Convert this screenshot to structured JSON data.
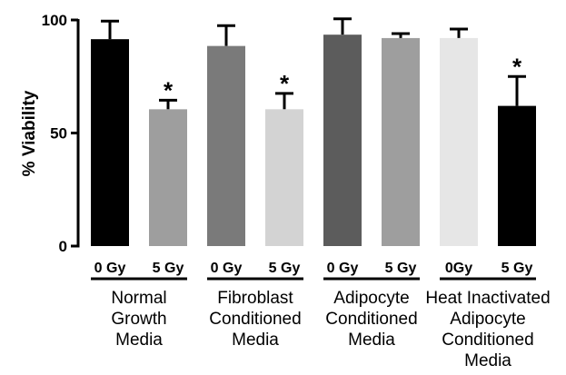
{
  "chart_data": {
    "type": "bar",
    "title": "",
    "xlabel": "",
    "ylabel": "% Viability",
    "ylim": [
      0,
      100
    ],
    "yticks": [
      0,
      50,
      100
    ],
    "grid": false,
    "bars": [
      {
        "condition": "0 Gy",
        "group": 0,
        "value": 91.5,
        "error": 8,
        "significant": false,
        "color": "#000000"
      },
      {
        "condition": "5 Gy",
        "group": 0,
        "value": 60.5,
        "error": 4,
        "significant": true,
        "color": "#9e9e9e"
      },
      {
        "condition": "0 Gy",
        "group": 1,
        "value": 88.5,
        "error": 9,
        "significant": false,
        "color": "#7a7a7a"
      },
      {
        "condition": "5 Gy",
        "group": 1,
        "value": 60.5,
        "error": 7,
        "significant": true,
        "color": "#d3d3d3"
      },
      {
        "condition": "0 Gy",
        "group": 2,
        "value": 93.5,
        "error": 7,
        "significant": false,
        "color": "#5c5c5c"
      },
      {
        "condition": "5 Gy",
        "group": 2,
        "value": 92.0,
        "error": 2,
        "significant": false,
        "color": "#9e9e9e"
      },
      {
        "condition": "0Gy",
        "group": 3,
        "value": 92.0,
        "error": 4,
        "significant": false,
        "color": "#e6e6e6"
      },
      {
        "condition": "5 Gy",
        "group": 3,
        "value": 62.0,
        "error": 13,
        "significant": true,
        "color": "#000000"
      }
    ],
    "groups": [
      {
        "lines": [
          "Normal",
          "Growth",
          "Media"
        ]
      },
      {
        "lines": [
          "Fibroblast",
          "Conditioned",
          "Media"
        ]
      },
      {
        "lines": [
          "Adipocyte",
          "Conditioned",
          "Media"
        ]
      },
      {
        "lines": [
          "Heat Inactivated",
          "Adipocyte",
          "Conditioned",
          "Media"
        ]
      }
    ],
    "significance_marker": "*"
  }
}
